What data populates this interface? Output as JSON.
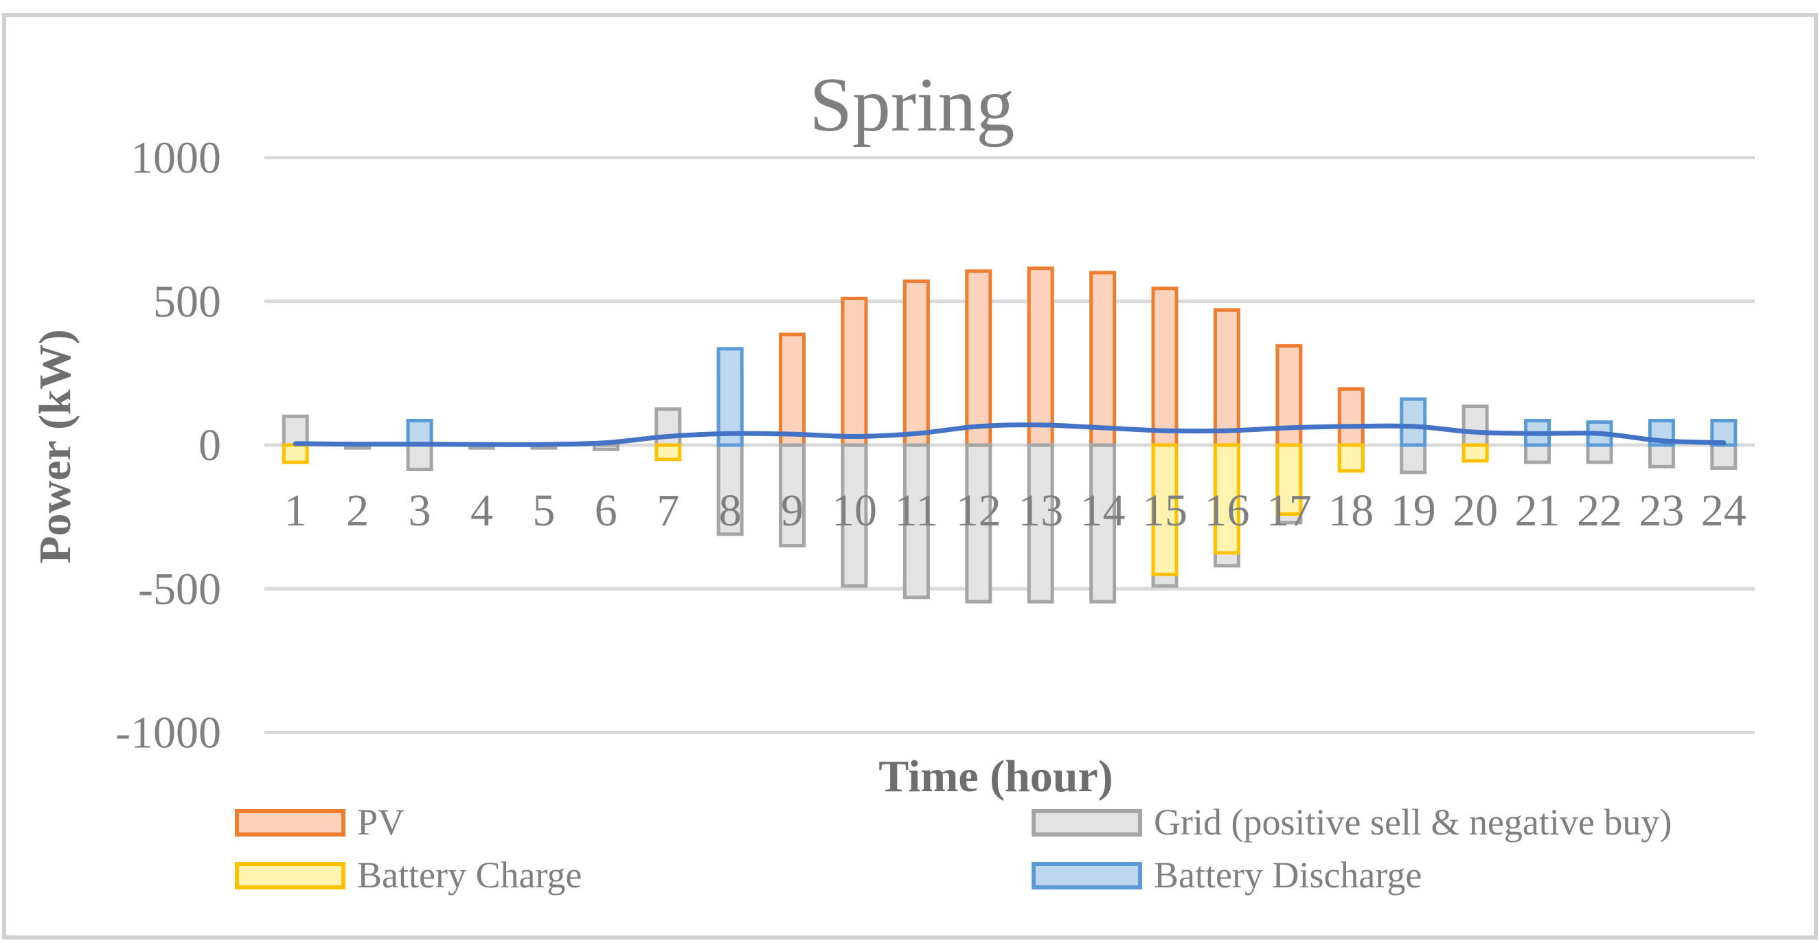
{
  "chart_data": {
    "type": "bar",
    "title": "Spring",
    "xlabel": "Time (hour)",
    "ylabel": "Power (kW)",
    "ylim": [
      -1000,
      1000
    ],
    "yticks": [
      "1000",
      "500",
      "0",
      "-500",
      "-1000"
    ],
    "ytick_values": [
      1000,
      500,
      0,
      -500,
      -1000
    ],
    "grid": true,
    "legend_position": "bottom",
    "categories": [
      "1",
      "2",
      "3",
      "4",
      "5",
      "6",
      "7",
      "8",
      "9",
      "10",
      "11",
      "12",
      "13",
      "14",
      "15",
      "16",
      "17",
      "18",
      "19",
      "20",
      "21",
      "22",
      "23",
      "24"
    ],
    "series": [
      {
        "name": "PV",
        "kind": "bar",
        "fill": "#fbd2bb",
        "stroke": "#ed7d31",
        "values": [
          0,
          0,
          0,
          0,
          0,
          0,
          100,
          250,
          385,
          510,
          570,
          605,
          615,
          600,
          545,
          470,
          345,
          195,
          0,
          0,
          0,
          0,
          0,
          0
        ]
      },
      {
        "name": "Grid (positive sell & negative buy)",
        "kind": "bar",
        "fill": "#e3e3e3",
        "stroke": "#a5a5a5",
        "values": [
          100,
          -10,
          -85,
          -10,
          -10,
          -15,
          125,
          -310,
          -350,
          -490,
          -530,
          -545,
          -545,
          -545,
          -490,
          -420,
          -270,
          -80,
          -95,
          135,
          -60,
          -60,
          -75,
          -80
        ]
      },
      {
        "name": "Battery Charge",
        "kind": "bar",
        "fill": "#fff3b0",
        "stroke": "#ffc000",
        "values": [
          -60,
          0,
          0,
          0,
          0,
          0,
          -50,
          0,
          0,
          0,
          0,
          0,
          0,
          0,
          -450,
          -375,
          -240,
          -90,
          0,
          -55,
          0,
          0,
          0,
          0
        ]
      },
      {
        "name": "Battery Discharge",
        "kind": "bar",
        "fill": "#bdd7ee",
        "stroke": "#5b9bd5",
        "values": [
          0,
          0,
          85,
          0,
          0,
          0,
          0,
          335,
          0,
          0,
          0,
          0,
          0,
          0,
          0,
          0,
          0,
          0,
          160,
          0,
          85,
          80,
          85,
          85
        ]
      },
      {
        "kind": "line",
        "color": "#4472c4",
        "values": [
          5,
          3,
          3,
          2,
          2,
          8,
          30,
          40,
          38,
          30,
          40,
          65,
          70,
          60,
          50,
          50,
          60,
          65,
          65,
          45,
          40,
          40,
          15,
          8
        ]
      }
    ]
  }
}
